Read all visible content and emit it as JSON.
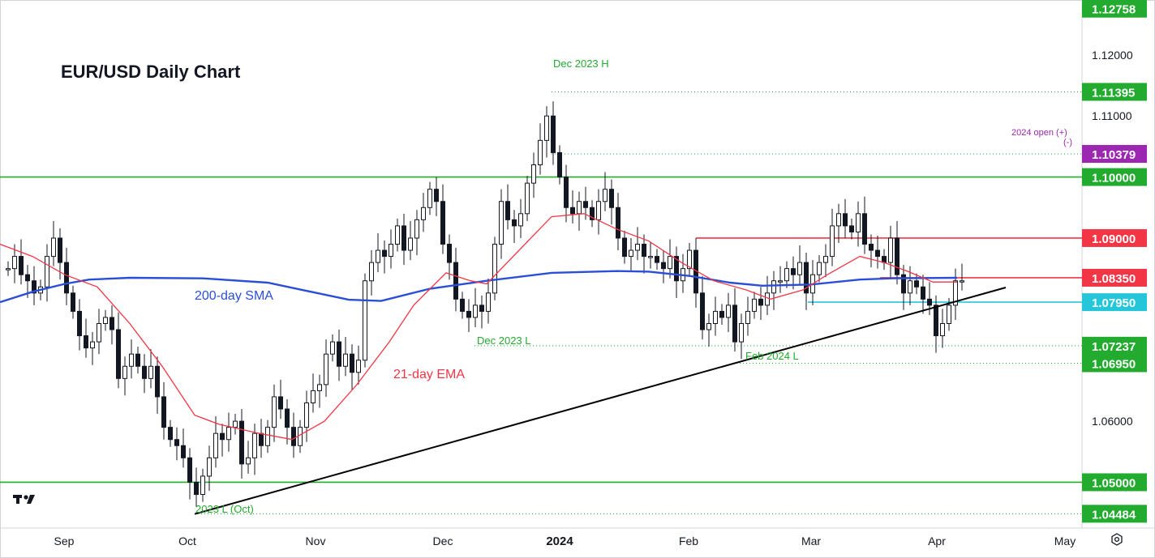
{
  "chart_data": {
    "type": "candlestick",
    "title": "EUR/USD Daily Chart",
    "ylim": [
      1.0425,
      1.129
    ],
    "x_labels": [
      "Sep",
      "Oct",
      "Nov",
      "Dec",
      "2024",
      "Feb",
      "Mar",
      "Apr",
      "May"
    ],
    "y_ticks": [
      "1.12000",
      "1.11000",
      "1.06000"
    ],
    "price_tags": [
      {
        "value": 1.12758,
        "text": "1.12758",
        "color": "#22ab2e"
      },
      {
        "value": 1.11395,
        "text": "1.11395",
        "color": "#22ab2e"
      },
      {
        "value": 1.10379,
        "text": "1.10379",
        "color": "#9c27b0"
      },
      {
        "value": 1.1,
        "text": "1.10000",
        "color": "#22ab2e"
      },
      {
        "value": 1.09,
        "text": "1.09000",
        "color": "#f23645"
      },
      {
        "value": 1.0835,
        "text": "1.08350",
        "color": "#f23645"
      },
      {
        "value": 1.0795,
        "text": "1.07950",
        "color": "#26c6da"
      },
      {
        "value": 1.07237,
        "text": "1.07237",
        "color": "#22ab2e"
      },
      {
        "value": 1.0695,
        "text": "1.06950",
        "color": "#22ab2e"
      },
      {
        "value": 1.05,
        "text": "1.05000",
        "color": "#22ab2e"
      },
      {
        "value": 1.04484,
        "text": "1.04484",
        "color": "#22ab2e"
      }
    ],
    "series": [
      {
        "name": "200-day SMA",
        "color": "#2a4fd6",
        "points": [
          [
            0,
            1.0795
          ],
          [
            40,
            1.0812
          ],
          [
            80,
            1.0825
          ],
          [
            110,
            1.0832
          ],
          [
            160,
            1.0835
          ],
          [
            250,
            1.0834
          ],
          [
            330,
            1.0827
          ],
          [
            430,
            1.0799
          ],
          [
            470,
            1.0797
          ],
          [
            530,
            1.0817
          ],
          [
            600,
            1.083
          ],
          [
            680,
            1.0843
          ],
          [
            760,
            1.0846
          ],
          [
            800,
            1.0845
          ],
          [
            850,
            1.0838
          ],
          [
            900,
            1.0827
          ],
          [
            940,
            1.0822
          ],
          [
            1000,
            1.0824
          ],
          [
            1060,
            1.0832
          ],
          [
            1100,
            1.0834
          ],
          [
            1180,
            1.0835
          ]
        ]
      },
      {
        "name": "21-day EMA",
        "color": "#f23645",
        "points": [
          [
            0,
            1.089
          ],
          [
            40,
            1.087
          ],
          [
            80,
            1.084
          ],
          [
            120,
            1.082
          ],
          [
            160,
            1.076
          ],
          [
            200,
            1.069
          ],
          [
            240,
            1.061
          ],
          [
            270,
            1.0595
          ],
          [
            320,
            1.058
          ],
          [
            360,
            1.057
          ],
          [
            400,
            1.06
          ],
          [
            440,
            1.066
          ],
          [
            480,
            1.073
          ],
          [
            510,
            1.079
          ],
          [
            550,
            1.0843
          ],
          [
            580,
            1.083
          ],
          [
            600,
            1.0825
          ],
          [
            640,
            1.088
          ],
          [
            680,
            1.0935
          ],
          [
            720,
            1.094
          ],
          [
            760,
            1.0915
          ],
          [
            800,
            1.0895
          ],
          [
            840,
            1.086
          ],
          [
            880,
            1.083
          ],
          [
            920,
            1.0815
          ],
          [
            950,
            1.08
          ],
          [
            990,
            1.0815
          ],
          [
            1020,
            1.084
          ],
          [
            1060,
            1.087
          ],
          [
            1090,
            1.086
          ],
          [
            1120,
            1.0845
          ],
          [
            1150,
            1.0828
          ],
          [
            1180,
            1.0828
          ]
        ]
      },
      {
        "name": "Uptrend line",
        "color": "#000000",
        "points": [
          [
            240,
            1.0448
          ],
          [
            1240,
            1.0819
          ]
        ]
      }
    ],
    "candles_close": [
      [
        10,
        1.085
      ],
      [
        18,
        1.087
      ],
      [
        26,
        1.084
      ],
      [
        34,
        1.083
      ],
      [
        42,
        1.081
      ],
      [
        50,
        1.082
      ],
      [
        58,
        1.087
      ],
      [
        66,
        1.09
      ],
      [
        74,
        1.086
      ],
      [
        82,
        1.081
      ],
      [
        90,
        1.078
      ],
      [
        98,
        1.074
      ],
      [
        106,
        1.072
      ],
      [
        114,
        1.073
      ],
      [
        122,
        1.076
      ],
      [
        130,
        1.077
      ],
      [
        138,
        1.075
      ],
      [
        146,
        1.067
      ],
      [
        154,
        1.069
      ],
      [
        162,
        1.071
      ],
      [
        170,
        1.069
      ],
      [
        178,
        1.067
      ],
      [
        186,
        1.069
      ],
      [
        194,
        1.064
      ],
      [
        202,
        1.059
      ],
      [
        210,
        1.057
      ],
      [
        218,
        1.056
      ],
      [
        226,
        1.054
      ],
      [
        234,
        1.05
      ],
      [
        242,
        1.048
      ],
      [
        250,
        1.051
      ],
      [
        258,
        1.054
      ],
      [
        266,
        1.058
      ],
      [
        274,
        1.057
      ],
      [
        282,
        1.059
      ],
      [
        290,
        1.06
      ],
      [
        298,
        1.053
      ],
      [
        306,
        1.054
      ],
      [
        314,
        1.058
      ],
      [
        322,
        1.056
      ],
      [
        330,
        1.059
      ],
      [
        338,
        1.064
      ],
      [
        346,
        1.062
      ],
      [
        354,
        1.059
      ],
      [
        362,
        1.056
      ],
      [
        370,
        1.059
      ],
      [
        378,
        1.063
      ],
      [
        386,
        1.065
      ],
      [
        394,
        1.066
      ],
      [
        402,
        1.071
      ],
      [
        410,
        1.073
      ],
      [
        418,
        1.069
      ],
      [
        426,
        1.071
      ],
      [
        434,
        1.068
      ],
      [
        442,
        1.07
      ],
      [
        450,
        1.083
      ],
      [
        458,
        1.086
      ],
      [
        466,
        1.088
      ],
      [
        474,
        1.087
      ],
      [
        482,
        1.089
      ],
      [
        490,
        1.092
      ],
      [
        498,
        1.088
      ],
      [
        506,
        1.09
      ],
      [
        514,
        1.093
      ],
      [
        522,
        1.095
      ],
      [
        530,
        1.098
      ],
      [
        538,
        1.096
      ],
      [
        546,
        1.089
      ],
      [
        554,
        1.086
      ],
      [
        562,
        1.08
      ],
      [
        570,
        1.078
      ],
      [
        578,
        1.077
      ],
      [
        586,
        1.079
      ],
      [
        594,
        1.078
      ],
      [
        602,
        1.081
      ],
      [
        610,
        1.089
      ],
      [
        618,
        1.096
      ],
      [
        626,
        1.093
      ],
      [
        634,
        1.092
      ],
      [
        642,
        1.094
      ],
      [
        650,
        1.099
      ],
      [
        658,
        1.102
      ],
      [
        666,
        1.106
      ],
      [
        674,
        1.11
      ],
      [
        682,
        1.104
      ],
      [
        690,
        1.1
      ],
      [
        698,
        1.095
      ],
      [
        706,
        1.094
      ],
      [
        714,
        1.096
      ],
      [
        722,
        1.095
      ],
      [
        730,
        1.093
      ],
      [
        738,
        1.096
      ],
      [
        746,
        1.098
      ],
      [
        754,
        1.095
      ],
      [
        762,
        1.09
      ],
      [
        770,
        1.087
      ],
      [
        778,
        1.088
      ],
      [
        786,
        1.089
      ],
      [
        794,
        1.087
      ],
      [
        802,
        1.087
      ],
      [
        810,
        1.086
      ],
      [
        818,
        1.085
      ],
      [
        826,
        1.087
      ],
      [
        834,
        1.083
      ],
      [
        842,
        1.085
      ],
      [
        850,
        1.088
      ],
      [
        858,
        1.081
      ],
      [
        866,
        1.075
      ],
      [
        874,
        1.076
      ],
      [
        882,
        1.078
      ],
      [
        890,
        1.077
      ],
      [
        898,
        1.079
      ],
      [
        906,
        1.073
      ],
      [
        914,
        1.076
      ],
      [
        922,
        1.078
      ],
      [
        930,
        1.08
      ],
      [
        938,
        1.079
      ],
      [
        946,
        1.081
      ],
      [
        954,
        1.083
      ],
      [
        962,
        1.083
      ],
      [
        970,
        1.085
      ],
      [
        978,
        1.084
      ],
      [
        986,
        1.086
      ],
      [
        994,
        1.081
      ],
      [
        1002,
        1.084
      ],
      [
        1010,
        1.086
      ],
      [
        1018,
        1.087
      ],
      [
        1026,
        1.092
      ],
      [
        1034,
        1.094
      ],
      [
        1042,
        1.092
      ],
      [
        1050,
        1.091
      ],
      [
        1058,
        1.094
      ],
      [
        1066,
        1.089
      ],
      [
        1074,
        1.088
      ],
      [
        1082,
        1.087
      ],
      [
        1090,
        1.086
      ],
      [
        1098,
        1.09
      ],
      [
        1106,
        1.084
      ],
      [
        1114,
        1.081
      ],
      [
        1122,
        1.083
      ],
      [
        1130,
        1.082
      ],
      [
        1138,
        1.08
      ],
      [
        1146,
        1.079
      ],
      [
        1154,
        1.074
      ],
      [
        1162,
        1.076
      ],
      [
        1170,
        1.079
      ],
      [
        1178,
        1.083
      ],
      [
        1186,
        1.083
      ]
    ],
    "annotations": [
      {
        "text": "Dec 2023 H",
        "color": "#22ab2e"
      },
      {
        "text": "Dec 2023 L",
        "color": "#22ab2e"
      },
      {
        "text": "Feb 2024 L",
        "color": "#22ab2e"
      },
      {
        "text": "2023 L (Oct)",
        "color": "#22ab2e"
      },
      {
        "text": "2024 open (+)",
        "color": "#9c27b0"
      },
      {
        "text": "(-)",
        "color": "#9c27b0"
      },
      {
        "text": "200-day SMA",
        "color": "#2a4fd6"
      },
      {
        "text": "21-day EMA",
        "color": "#f23645"
      }
    ],
    "logo": "TV",
    "settings_icon": "gear-icon"
  }
}
